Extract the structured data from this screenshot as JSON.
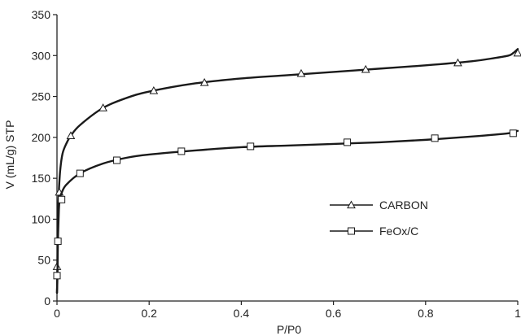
{
  "chart_data": {
    "type": "line",
    "title": "",
    "xlabel": "P/P0",
    "ylabel": "V (mL/g) STP",
    "xlim": [
      0,
      1
    ],
    "ylim": [
      0,
      350
    ],
    "x_ticks": [
      "0",
      "0.2",
      "0.4",
      "0.6",
      "0.8",
      "1"
    ],
    "y_ticks": [
      "0",
      "50",
      "100",
      "150",
      "200",
      "250",
      "300",
      "350"
    ],
    "grid": false,
    "legend_position": "center-right",
    "series": [
      {
        "name": "CARBON",
        "marker": "triangle",
        "color": "#1a1a1a",
        "x": [
          0.0,
          0.001,
          0.002,
          0.004,
          0.007,
          0.012,
          0.02,
          0.03,
          0.05,
          0.1,
          0.15,
          0.2,
          0.3,
          0.4,
          0.5,
          0.6,
          0.7,
          0.8,
          0.9,
          0.95,
          0.98,
          0.99,
          1.0
        ],
        "y": [
          10,
          45,
          100,
          133,
          160,
          180,
          192,
          202,
          215,
          236,
          248,
          256,
          266,
          272,
          276,
          280,
          284,
          288,
          293,
          297,
          300,
          303,
          308
        ],
        "marker_x": [
          0.0,
          0.005,
          0.03,
          0.1,
          0.21,
          0.32,
          0.53,
          0.67,
          0.87,
          1.0
        ],
        "marker_y": [
          42,
          133,
          202,
          236,
          257,
          267,
          278,
          283,
          291,
          303
        ]
      },
      {
        "name": "FeOx/C",
        "marker": "square",
        "color": "#1a1a1a",
        "x": [
          0.0,
          0.001,
          0.002,
          0.004,
          0.006,
          0.01,
          0.02,
          0.05,
          0.1,
          0.15,
          0.2,
          0.3,
          0.4,
          0.5,
          0.6,
          0.7,
          0.8,
          0.9,
          0.98,
          1.0
        ],
        "y": [
          10,
          30,
          73,
          110,
          125,
          132,
          142,
          156,
          168,
          175,
          179,
          184,
          188,
          190,
          192,
          194,
          197,
          201,
          205,
          208
        ],
        "marker_x": [
          0.0,
          0.002,
          0.01,
          0.05,
          0.13,
          0.27,
          0.42,
          0.63,
          0.82,
          0.99
        ],
        "marker_y": [
          31,
          73,
          124,
          156,
          172,
          183,
          189,
          194,
          199,
          205
        ]
      }
    ]
  }
}
